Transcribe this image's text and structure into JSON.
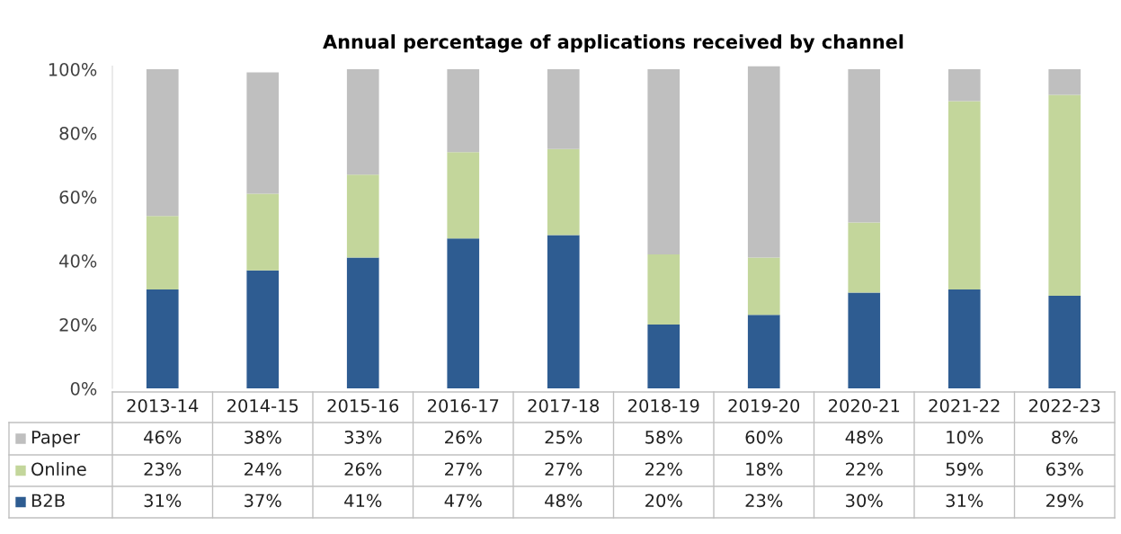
{
  "chart_data": {
    "type": "bar",
    "title": "Annual percentage of applications received by channel",
    "categories": [
      "2013-14",
      "2014-15",
      "2015-16",
      "2016-17",
      "2017-18",
      "2018-19",
      "2019-20",
      "2020-21",
      "2021-22",
      "2022-23"
    ],
    "stacked": true,
    "series": [
      {
        "name": "B2B",
        "color": "#2e5c91",
        "values": [
          31,
          37,
          41,
          47,
          48,
          20,
          23,
          30,
          31,
          29
        ],
        "value_labels": [
          "31%",
          "37%",
          "41%",
          "47%",
          "48%",
          "20%",
          "23%",
          "30%",
          "31%",
          "29%"
        ]
      },
      {
        "name": "Online",
        "color": "#c3d69b",
        "values": [
          23,
          24,
          26,
          27,
          27,
          22,
          18,
          22,
          59,
          63
        ],
        "value_labels": [
          "23%",
          "24%",
          "26%",
          "27%",
          "27%",
          "22%",
          "18%",
          "22%",
          "59%",
          "63%"
        ]
      },
      {
        "name": "Paper",
        "color": "#bfbfbf",
        "values": [
          46,
          38,
          33,
          26,
          25,
          58,
          60,
          48,
          10,
          8
        ],
        "value_labels": [
          "46%",
          "38%",
          "33%",
          "26%",
          "25%",
          "58%",
          "60%",
          "48%",
          "10%",
          "8%"
        ]
      }
    ],
    "ylim": [
      0,
      101
    ],
    "yticks": [
      {
        "value": 0,
        "label": "0%"
      },
      {
        "value": 20,
        "label": "20%"
      },
      {
        "value": 40,
        "label": "40%"
      },
      {
        "value": 60,
        "label": "60%"
      },
      {
        "value": 80,
        "label": "80%"
      },
      {
        "value": 100,
        "label": "100%"
      }
    ],
    "legend": "bottom",
    "grid": false
  }
}
